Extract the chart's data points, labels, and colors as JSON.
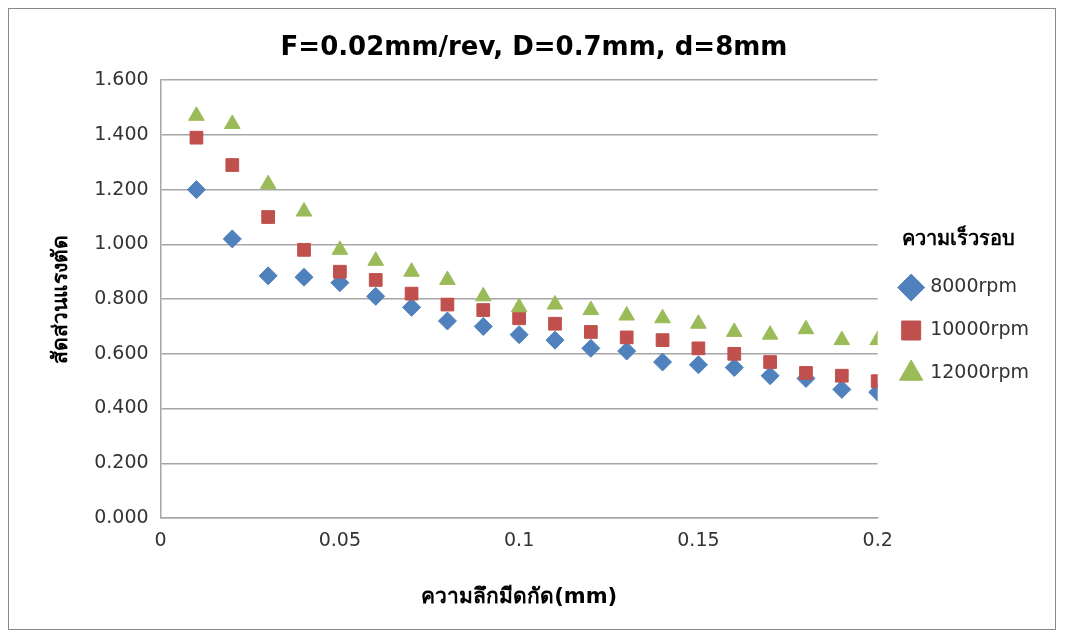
{
  "chart_data": {
    "type": "scatter",
    "title": "F=0.02mm/rev, D=0.7mm, d=8mm",
    "xlabel": "ความลึกมีดกัด(mm)",
    "ylabel": "สัดส่วนแรงตัด",
    "legend_title": "ความเร็วรอบ",
    "x": [
      0.01,
      0.02,
      0.03,
      0.04,
      0.05,
      0.06,
      0.07,
      0.08,
      0.09,
      0.1,
      0.11,
      0.12,
      0.13,
      0.14,
      0.15,
      0.16,
      0.17,
      0.18,
      0.19,
      0.2
    ],
    "series": [
      {
        "name": "8000rpm",
        "color": "#4f81bd",
        "marker": "diamond",
        "values": [
          1.2,
          1.02,
          0.885,
          0.88,
          0.86,
          0.81,
          0.77,
          0.72,
          0.7,
          0.67,
          0.65,
          0.62,
          0.61,
          0.57,
          0.56,
          0.55,
          0.52,
          0.51,
          0.47,
          0.46
        ]
      },
      {
        "name": "10000rpm",
        "color": "#c0504d",
        "marker": "square",
        "values": [
          1.39,
          1.29,
          1.1,
          0.98,
          0.9,
          0.87,
          0.82,
          0.78,
          0.76,
          0.73,
          0.71,
          0.68,
          0.66,
          0.65,
          0.62,
          0.6,
          0.57,
          0.53,
          0.52,
          0.5
        ]
      },
      {
        "name": "12000rpm",
        "color": "#9bbb59",
        "marker": "triangle",
        "values": [
          1.47,
          1.44,
          1.22,
          1.12,
          0.98,
          0.94,
          0.9,
          0.87,
          0.81,
          0.77,
          0.78,
          0.76,
          0.74,
          0.73,
          0.71,
          0.68,
          0.67,
          0.69,
          0.65,
          0.65
        ]
      }
    ],
    "xlim": [
      0,
      0.2
    ],
    "xticks": [
      0,
      0.05,
      0.1,
      0.15,
      0.2
    ],
    "ylim": [
      0,
      1.6
    ],
    "yticks": [
      {
        "value": 0,
        "label": "0.000"
      },
      {
        "value": 0.2,
        "label": "0.200"
      },
      {
        "value": 0.4,
        "label": "0.400"
      },
      {
        "value": 0.6,
        "label": "0.600"
      },
      {
        "value": 0.8,
        "label": "0.800"
      },
      {
        "value": 1,
        "label": "1.000"
      },
      {
        "value": 1.2,
        "label": "1.200"
      },
      {
        "value": 1.4,
        "label": "1.400"
      },
      {
        "value": 1.6,
        "label": "1.600"
      }
    ],
    "grid": "y",
    "legend": "right"
  }
}
